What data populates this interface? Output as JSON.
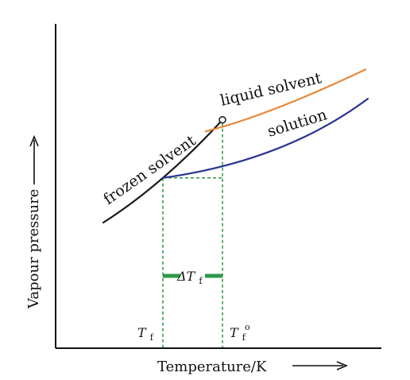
{
  "chart_data": {
    "type": "line",
    "title": "",
    "xlabel": "Temperature/K",
    "ylabel": "Vapour pressure",
    "axis_ticks": false,
    "grid": false,
    "legend": "none",
    "series": [
      {
        "name": "frozen solvent",
        "color": "#1a1a1a",
        "points": [
          [
            0.0,
            0.0
          ],
          [
            0.5,
            0.375
          ],
          [
            1.0,
            0.862
          ]
        ]
      },
      {
        "name": "liquid solvent",
        "color": "#e8893a",
        "points": [
          [
            0.86,
            0.765
          ],
          [
            1.46,
            0.962
          ],
          [
            2.2,
            1.284
          ]
        ]
      },
      {
        "name": "solution",
        "color": "#2a3590",
        "points": [
          [
            0.5,
            0.375
          ],
          [
            1.44,
            0.612
          ],
          [
            2.22,
            1.039
          ]
        ]
      }
    ],
    "annotations": {
      "delta_label": "ΔT",
      "delta_subscript": "f",
      "tf_label": "T",
      "tf_subscript": "f",
      "tf0_label": "T",
      "tf0_subscript": "f",
      "tf0_superscript": "o",
      "guide_color": "#2e9a48",
      "marker": "open-circle"
    }
  }
}
